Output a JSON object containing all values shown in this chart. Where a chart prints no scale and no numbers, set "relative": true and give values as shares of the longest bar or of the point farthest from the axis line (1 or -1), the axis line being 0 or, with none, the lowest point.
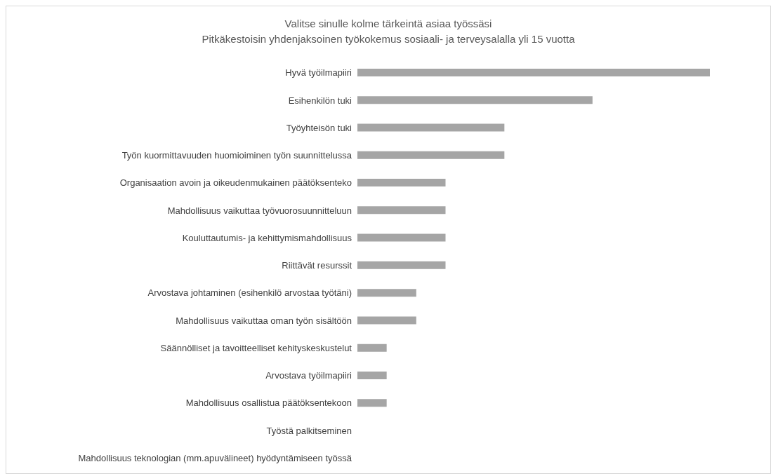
{
  "chart_data": {
    "type": "bar",
    "orientation": "horizontal",
    "relative": true,
    "title": "Valitse sinulle kolme tärkeintä asiaa työssäsi",
    "subtitle": "Pitkäkestoisin yhdenjaksoinen työkokemus sosiaali- ja terveysalalla yli 15 vuotta",
    "categories": [
      "Hyvä työilmapiiri",
      "Esihenkilön tuki",
      "Työyhteisön tuki",
      "Työn kuormittavuuden huomioiminen työn suunnittelussa",
      "Organisaation avoin ja oikeudenmukainen päätöksenteko",
      "Mahdollisuus vaikuttaa työvuorosuunnitteluun",
      "Kouluttautumis- ja kehittymismahdollisuus",
      "Riittävät resurssit",
      "Arvostava johtaminen (esihenkilö arvostaa työtäni)",
      "Mahdollisuus vaikuttaa oman työn sisältöön",
      "Säännölliset ja tavoitteelliset kehityskeskustelut",
      "Arvostava työilmapiiri",
      "Mahdollisuus osallistua päätöksentekoon",
      "Työstä palkitseminen",
      "Mahdollisuus teknologian (mm.apuvälineet)  hyödyntämiseen työssä"
    ],
    "values": [
      1,
      0.667,
      0.417,
      0.417,
      0.25,
      0.25,
      0.25,
      0.25,
      0.167,
      0.167,
      0.083,
      0.083,
      0.083,
      0,
      0
    ],
    "color": "#a5a5a5",
    "grid": false,
    "legend": false
  }
}
